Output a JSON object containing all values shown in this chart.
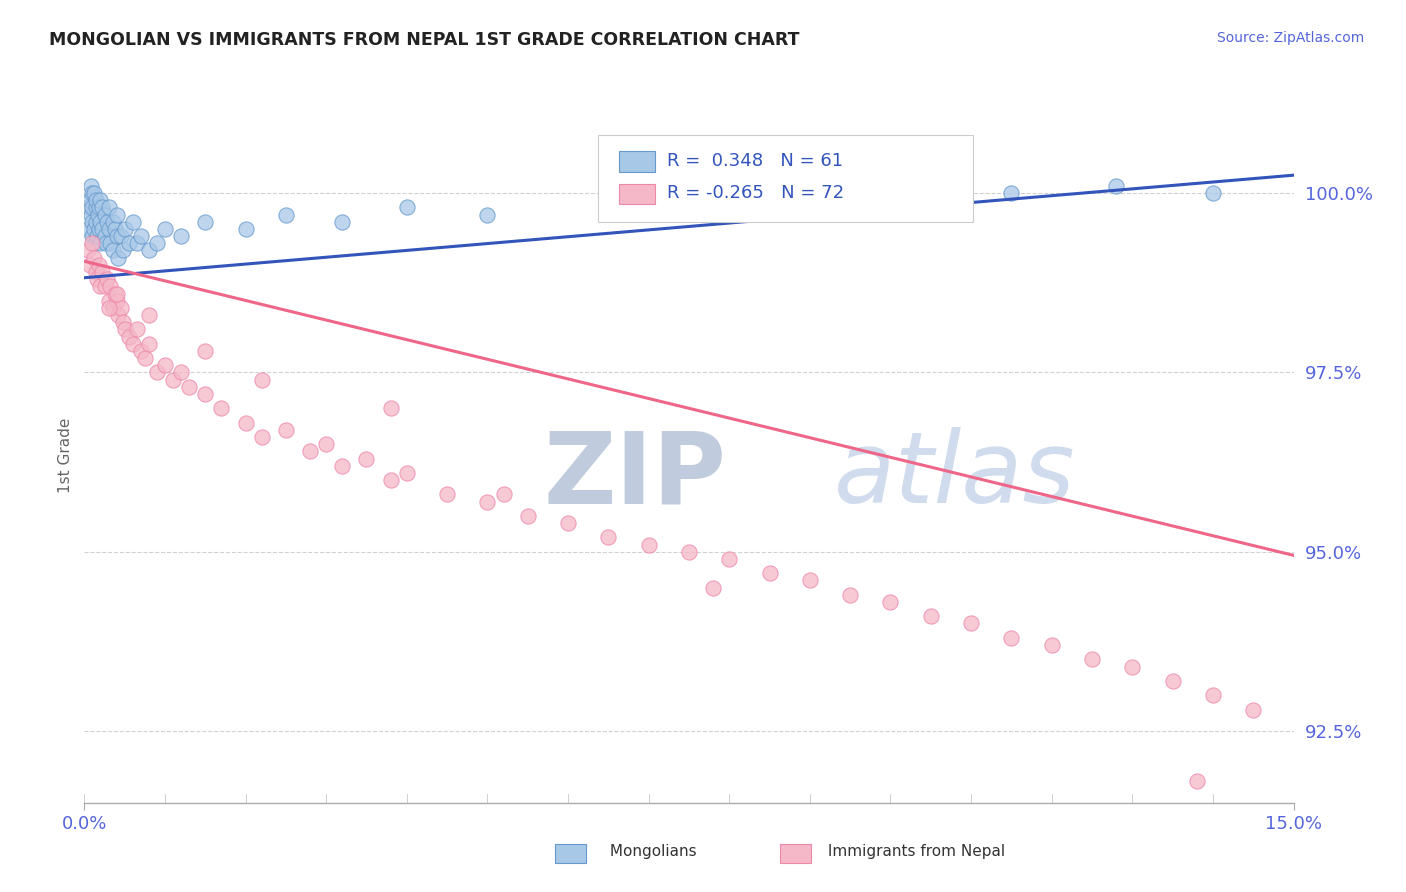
{
  "title": "MONGOLIAN VS IMMIGRANTS FROM NEPAL 1ST GRADE CORRELATION CHART",
  "source_text": "Source: ZipAtlas.com",
  "ylabel_label": "1st Grade",
  "yticks": [
    92.5,
    95.0,
    97.5,
    100.0
  ],
  "ytick_labels": [
    "92.5%",
    "95.0%",
    "97.5%",
    "100.0%"
  ],
  "xtick_labels": [
    "0.0%",
    "15.0%"
  ],
  "xlim": [
    0.0,
    15.0
  ],
  "ylim": [
    91.5,
    101.2
  ],
  "legend_label_blue": "R =  0.348   N = 61",
  "legend_label_pink": "R = -0.265   N = 72",
  "mongolian_color": "#a8c8e8",
  "nepal_color": "#f4b8c8",
  "blue_line_color": "#3355bb",
  "pink_line_color": "#ee6688",
  "axis_color": "#5566dd",
  "watermark_zip_color": "#c5d5e8",
  "watermark_atlas_color": "#d5e5f5",
  "blue_trend_x0": 0.0,
  "blue_trend_y0": 98.82,
  "blue_trend_x1": 15.0,
  "blue_trend_y1": 100.25,
  "pink_trend_x0": 0.0,
  "pink_trend_y0": 99.05,
  "pink_trend_x1": 15.0,
  "pink_trend_y1": 94.95,
  "mongolian_x": [
    0.05,
    0.05,
    0.07,
    0.08,
    0.08,
    0.09,
    0.1,
    0.1,
    0.1,
    0.12,
    0.12,
    0.13,
    0.14,
    0.15,
    0.15,
    0.16,
    0.17,
    0.18,
    0.18,
    0.19,
    0.2,
    0.2,
    0.22,
    0.22,
    0.25,
    0.25,
    0.27,
    0.28,
    0.3,
    0.3,
    0.32,
    0.35,
    0.35,
    0.38,
    0.4,
    0.4,
    0.42,
    0.45,
    0.48,
    0.5,
    0.55,
    0.6,
    0.65,
    0.7,
    0.8,
    0.9,
    1.0,
    1.2,
    1.5,
    2.0,
    2.5,
    3.2,
    4.0,
    5.0,
    6.5,
    7.2,
    8.5,
    10.0,
    11.5,
    12.8,
    14.0
  ],
  "mongolian_y": [
    99.8,
    99.5,
    99.9,
    100.1,
    99.7,
    99.6,
    99.8,
    99.4,
    100.0,
    99.5,
    100.0,
    99.3,
    99.8,
    99.6,
    99.9,
    99.4,
    99.7,
    99.5,
    99.8,
    99.3,
    99.6,
    99.9,
    99.5,
    99.8,
    99.4,
    99.7,
    99.3,
    99.6,
    99.5,
    99.8,
    99.3,
    99.6,
    99.2,
    99.5,
    99.4,
    99.7,
    99.1,
    99.4,
    99.2,
    99.5,
    99.3,
    99.6,
    99.3,
    99.4,
    99.2,
    99.3,
    99.5,
    99.4,
    99.6,
    99.5,
    99.7,
    99.6,
    99.8,
    99.7,
    99.9,
    100.0,
    99.8,
    99.9,
    100.0,
    100.1,
    100.0
  ],
  "nepal_x": [
    0.05,
    0.07,
    0.1,
    0.12,
    0.14,
    0.16,
    0.18,
    0.2,
    0.22,
    0.25,
    0.28,
    0.3,
    0.32,
    0.35,
    0.38,
    0.4,
    0.42,
    0.45,
    0.48,
    0.5,
    0.55,
    0.6,
    0.65,
    0.7,
    0.75,
    0.8,
    0.9,
    1.0,
    1.1,
    1.2,
    1.3,
    1.5,
    1.7,
    2.0,
    2.2,
    2.5,
    2.8,
    3.0,
    3.2,
    3.5,
    3.8,
    4.0,
    4.5,
    5.0,
    5.5,
    6.0,
    6.5,
    7.0,
    7.5,
    8.0,
    8.5,
    9.0,
    9.5,
    10.0,
    10.5,
    11.0,
    11.5,
    12.0,
    12.5,
    13.0,
    13.5,
    14.0,
    14.5,
    7.8,
    5.2,
    3.8,
    2.2,
    1.5,
    0.8,
    0.4,
    0.3,
    13.8
  ],
  "nepal_y": [
    99.2,
    99.0,
    99.3,
    99.1,
    98.9,
    98.8,
    99.0,
    98.7,
    98.9,
    98.7,
    98.8,
    98.5,
    98.7,
    98.4,
    98.6,
    98.5,
    98.3,
    98.4,
    98.2,
    98.1,
    98.0,
    97.9,
    98.1,
    97.8,
    97.7,
    97.9,
    97.5,
    97.6,
    97.4,
    97.5,
    97.3,
    97.2,
    97.0,
    96.8,
    96.6,
    96.7,
    96.4,
    96.5,
    96.2,
    96.3,
    96.0,
    96.1,
    95.8,
    95.7,
    95.5,
    95.4,
    95.2,
    95.1,
    95.0,
    94.9,
    94.7,
    94.6,
    94.4,
    94.3,
    94.1,
    94.0,
    93.8,
    93.7,
    93.5,
    93.4,
    93.2,
    93.0,
    92.8,
    94.5,
    95.8,
    97.0,
    97.4,
    97.8,
    98.3,
    98.6,
    98.4,
    91.8
  ]
}
